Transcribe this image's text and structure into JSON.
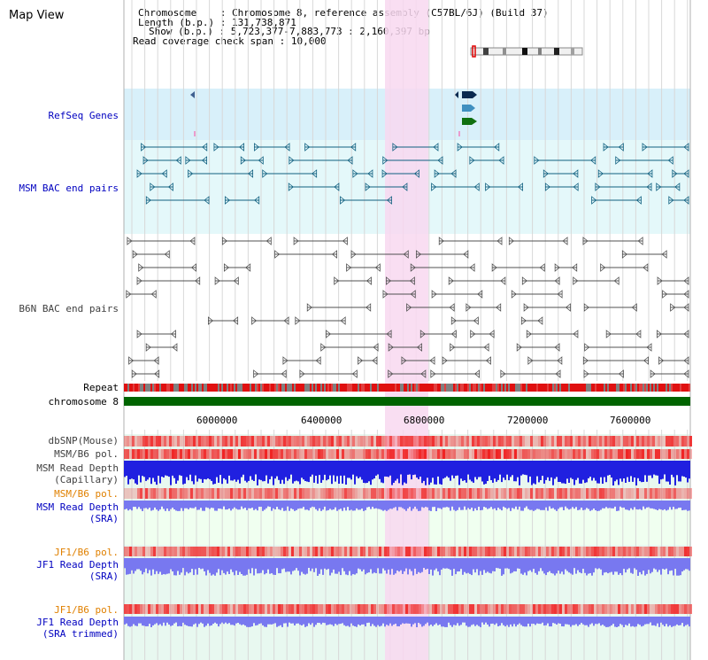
{
  "view": {
    "title": "Map View"
  },
  "info": {
    "chromosome_key": "Chromosome",
    "chromosome_val": "Chromosome 8, reference assembly (C57BL/6J) (Build 37)",
    "length_key": "Length (b.p.)",
    "length_val": "131,738,871",
    "show_key": "Show (b.p.)",
    "show_val": "5,723,377-7,883,773 : 2,160,397 bp",
    "span_key": "Read coverage check span",
    "span_val": "10,000"
  },
  "axis": {
    "ticks": [
      "6000000",
      "6400000",
      "6800000",
      "7200000",
      "7600000"
    ]
  },
  "tracks": {
    "refseq": "RefSeq Genes",
    "msm_bac": "MSM BAC end pairs",
    "b6n_bac": "B6N BAC end pairs",
    "repeat": "Repeat",
    "chrom": "chromosome 8",
    "dbsnp": "dbSNP(Mouse)",
    "msm_b6_pol_1": "MSM/B6 pol.",
    "msm_depth_cap_1": "MSM Read Depth",
    "msm_depth_cap_2": "(Capillary)",
    "msm_b6_pol_2": "MSM/B6 pol.",
    "msm_depth_sra_1": "MSM Read Depth",
    "msm_depth_sra_2": "(SRA)",
    "jf1_b6_pol_1": "JF1/B6 pol.",
    "jf1_depth_sra_1": "JF1 Read Depth",
    "jf1_depth_sra_2": "(SRA)",
    "jf1_b6_pol_2": "JF1/B6 pol.",
    "jf1_depth_trim_1": "JF1 Read Depth",
    "jf1_depth_trim_2": "(SRA trimmed)"
  },
  "colors": {
    "refseq_bg": "#d8f0fa",
    "msm_bg": "#e4f8fa",
    "highlight": "#f8d8f0",
    "label_blue": "#0000c0",
    "label_orange": "#e08000",
    "chrom_green": "#006400",
    "depth_blue": "#2020e0",
    "depth_light": "#7878f0"
  }
}
